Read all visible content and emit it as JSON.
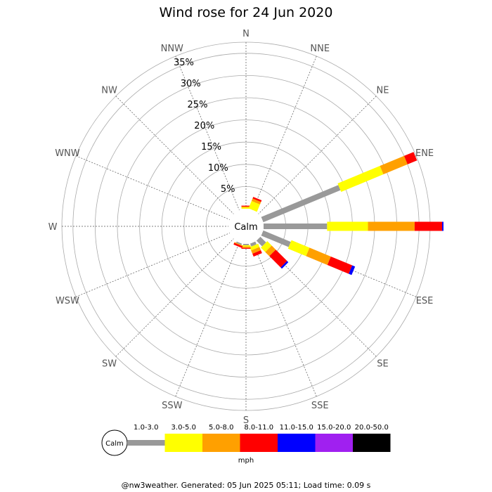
{
  "chart_data": {
    "type": "windrose",
    "title": "Wind rose for 24 Jun 2020",
    "directions": [
      "N",
      "NNE",
      "NE",
      "ENE",
      "E",
      "ESE",
      "SE",
      "SSE",
      "S",
      "SSW",
      "SW",
      "WSW",
      "W",
      "WNW",
      "NW",
      "NNW"
    ],
    "rings": [
      "5%",
      "10%",
      "15%",
      "20%",
      "25%",
      "30%",
      "35%"
    ],
    "rmax_percent": 37.5,
    "calm_label": "Calm",
    "bins": [
      "1.0-3.0",
      "3.0-5.0",
      "5.0-8.0",
      "8.0-11.0",
      "11.0-15.0",
      "15.0-20.0",
      "20.0-50.0"
    ],
    "bin_colors": [
      "#999999",
      "#ffff00",
      "#ffa000",
      "#ff0000",
      "#0000ff",
      "#a020f0",
      "#000000"
    ],
    "unit": "mph",
    "series": [
      {
        "dir": "N",
        "values": [
          0,
          0.3,
          0.2,
          0.2,
          0,
          0,
          0
        ]
      },
      {
        "dir": "NNE",
        "values": [
          0,
          1.8,
          0.6,
          0.4,
          0,
          0,
          0
        ]
      },
      {
        "dir": "NE",
        "values": [
          0,
          0,
          0,
          0,
          0,
          0,
          0
        ]
      },
      {
        "dir": "ENE",
        "values": [
          18.8,
          10.3,
          5.9,
          2.3,
          0,
          0,
          0
        ]
      },
      {
        "dir": "E",
        "values": [
          14.3,
          9.2,
          10.5,
          6.2,
          0.3,
          0,
          0
        ]
      },
      {
        "dir": "ESE",
        "values": [
          6.7,
          4.4,
          5.2,
          5.2,
          0.7,
          0,
          0
        ]
      },
      {
        "dir": "SE",
        "values": [
          1.8,
          1.4,
          1.3,
          3.6,
          0.4,
          0,
          0
        ]
      },
      {
        "dir": "SSE",
        "values": [
          0.7,
          0.8,
          0.8,
          0.7,
          0,
          0,
          0
        ]
      },
      {
        "dir": "S",
        "values": [
          0.3,
          0.3,
          0.3,
          0.2,
          0,
          0,
          0
        ]
      },
      {
        "dir": "SSW",
        "values": [
          0.3,
          0,
          0.2,
          0.4,
          0,
          0,
          0
        ]
      },
      {
        "dir": "SW",
        "values": [
          0,
          0,
          0,
          0,
          0,
          0,
          0
        ]
      },
      {
        "dir": "WSW",
        "values": [
          0,
          0,
          0,
          0,
          0,
          0,
          0
        ]
      },
      {
        "dir": "W",
        "values": [
          0,
          0,
          0,
          0,
          0,
          0,
          0
        ]
      },
      {
        "dir": "WNW",
        "values": [
          0,
          0,
          0,
          0,
          0,
          0,
          0
        ]
      },
      {
        "dir": "NW",
        "values": [
          0,
          0,
          0,
          0,
          0,
          0,
          0
        ]
      },
      {
        "dir": "NNW",
        "values": [
          0,
          0,
          0,
          0,
          0,
          0,
          0
        ]
      }
    ]
  },
  "footer": "@nw3weather. Generated: 05 Jun 2025 05:11; Load time: 0.09 s"
}
